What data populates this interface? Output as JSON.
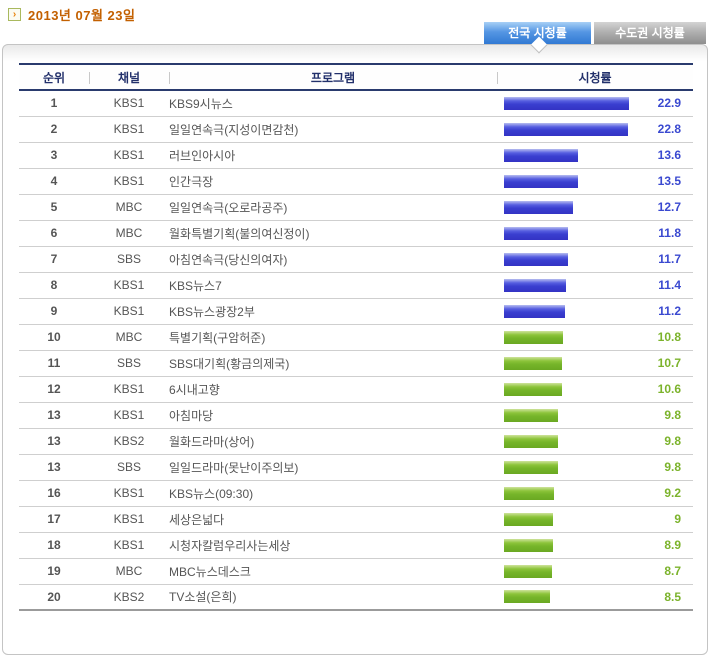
{
  "page": {
    "date": "2013년 07월 23일"
  },
  "tabs": [
    {
      "id": "national",
      "label": "전국 시청률",
      "active": true
    },
    {
      "id": "metro",
      "label": "수도권 시청률",
      "active": false
    }
  ],
  "table": {
    "headers": {
      "rank": "순위",
      "channel": "채널",
      "program": "프로그램",
      "rating": "시청률"
    },
    "rows": [
      {
        "rank": "1",
        "channel": "KBS1",
        "program": "KBS9시뉴스",
        "rating": "22.9",
        "value": 22.9,
        "group": "blue"
      },
      {
        "rank": "2",
        "channel": "KBS1",
        "program": "일일연속극(지성이면감천)",
        "rating": "22.8",
        "value": 22.8,
        "group": "blue"
      },
      {
        "rank": "3",
        "channel": "KBS1",
        "program": "러브인아시아",
        "rating": "13.6",
        "value": 13.6,
        "group": "blue"
      },
      {
        "rank": "4",
        "channel": "KBS1",
        "program": "인간극장",
        "rating": "13.5",
        "value": 13.5,
        "group": "blue"
      },
      {
        "rank": "5",
        "channel": "MBC",
        "program": "일일연속극(오로라공주)",
        "rating": "12.7",
        "value": 12.7,
        "group": "blue"
      },
      {
        "rank": "6",
        "channel": "MBC",
        "program": "월화특별기획(불의여신정이)",
        "rating": "11.8",
        "value": 11.8,
        "group": "blue"
      },
      {
        "rank": "7",
        "channel": "SBS",
        "program": "아침연속극(당신의여자)",
        "rating": "11.7",
        "value": 11.7,
        "group": "blue"
      },
      {
        "rank": "8",
        "channel": "KBS1",
        "program": "KBS뉴스7",
        "rating": "11.4",
        "value": 11.4,
        "group": "blue"
      },
      {
        "rank": "9",
        "channel": "KBS1",
        "program": "KBS뉴스광장2부",
        "rating": "11.2",
        "value": 11.2,
        "group": "blue"
      },
      {
        "rank": "10",
        "channel": "MBC",
        "program": "특별기획(구암허준)",
        "rating": "10.8",
        "value": 10.8,
        "group": "green"
      },
      {
        "rank": "11",
        "channel": "SBS",
        "program": "SBS대기획(황금의제국)",
        "rating": "10.7",
        "value": 10.7,
        "group": "green"
      },
      {
        "rank": "12",
        "channel": "KBS1",
        "program": "6시내고향",
        "rating": "10.6",
        "value": 10.6,
        "group": "green"
      },
      {
        "rank": "13",
        "channel": "KBS1",
        "program": "아침마당",
        "rating": "9.8",
        "value": 9.8,
        "group": "green"
      },
      {
        "rank": "13",
        "channel": "KBS2",
        "program": "월화드라마(상어)",
        "rating": "9.8",
        "value": 9.8,
        "group": "green"
      },
      {
        "rank": "13",
        "channel": "SBS",
        "program": "일일드라마(못난이주의보)",
        "rating": "9.8",
        "value": 9.8,
        "group": "green"
      },
      {
        "rank": "16",
        "channel": "KBS1",
        "program": "KBS뉴스(09:30)",
        "rating": "9.2",
        "value": 9.2,
        "group": "green"
      },
      {
        "rank": "17",
        "channel": "KBS1",
        "program": "세상은넓다",
        "rating": "9",
        "value": 9.0,
        "group": "green"
      },
      {
        "rank": "18",
        "channel": "KBS1",
        "program": "시청자칼럼우리사는세상",
        "rating": "8.9",
        "value": 8.9,
        "group": "green"
      },
      {
        "rank": "19",
        "channel": "MBC",
        "program": "MBC뉴스데스크",
        "rating": "8.7",
        "value": 8.7,
        "group": "green"
      },
      {
        "rank": "20",
        "channel": "KBS2",
        "program": "TV소설(은희)",
        "rating": "8.5",
        "value": 8.5,
        "group": "green"
      }
    ]
  },
  "colors": {
    "date_text": "#c36000",
    "tab_active": "#3079d3",
    "tab_inactive": "#8e8e8e",
    "header_text": "#22306b",
    "bar_blue": "#3a3fd0",
    "bar_green": "#76b52a",
    "value_blue": "#3a49d0",
    "value_green": "#7cb32c",
    "body_text": "#555555"
  }
}
